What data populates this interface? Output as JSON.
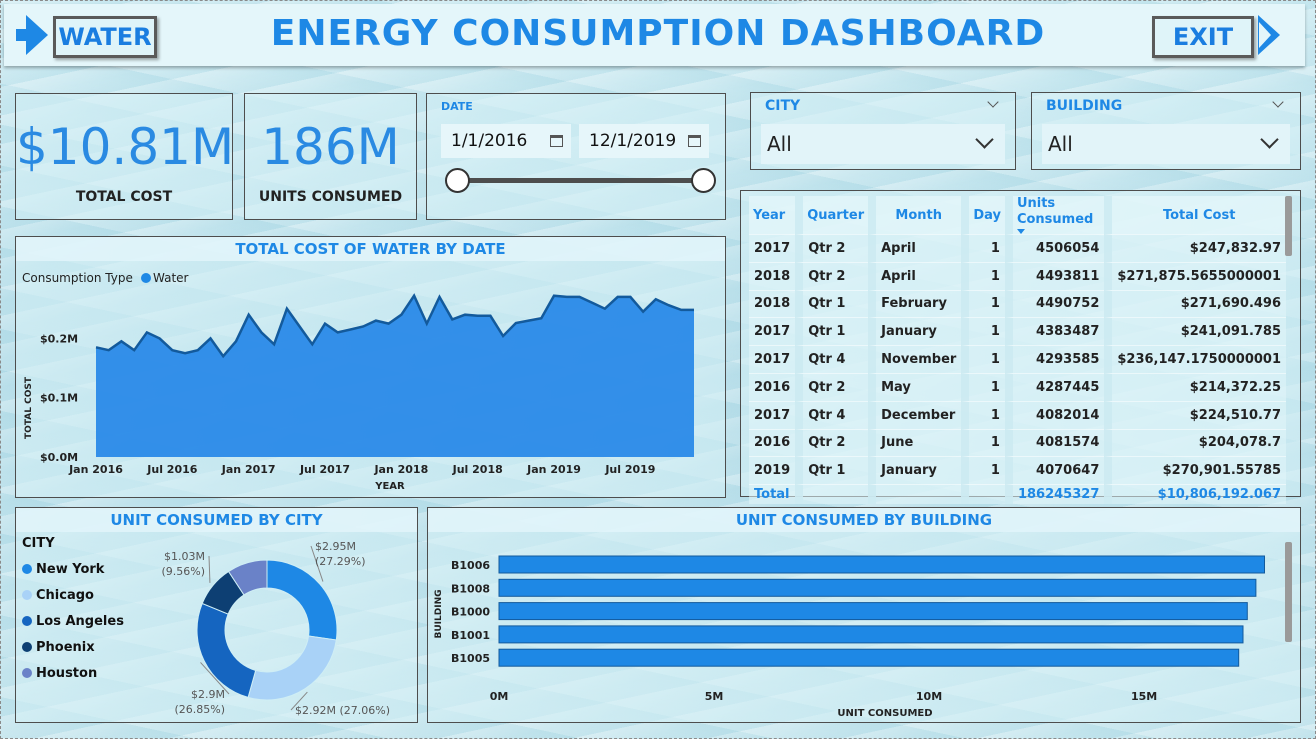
{
  "header": {
    "title": "ENERGY CONSUMPTION DASHBOARD",
    "water_button": "WATER",
    "exit_button": "EXIT"
  },
  "kpis": {
    "total_cost_value": "$10.81M",
    "total_cost_label": "TOTAL COST",
    "units_value": "186M",
    "units_label": "UNITS CONSUMED"
  },
  "date_slicer": {
    "label": "DATE",
    "start": "1/1/2016",
    "end": "12/1/2019",
    "range_fraction": [
      0,
      1
    ]
  },
  "city_slicer": {
    "label": "CITY",
    "value": "All"
  },
  "building_slicer": {
    "label": "BUILDING",
    "value": "All"
  },
  "table": {
    "columns": [
      "Year",
      "Quarter",
      "Month",
      "Day",
      "Units Consumed",
      "Total Cost"
    ],
    "sorted_column": "Units Consumed",
    "rows": [
      [
        "2017",
        "Qtr 2",
        "April",
        "1",
        "4506054",
        "$247,832.97"
      ],
      [
        "2018",
        "Qtr 2",
        "April",
        "1",
        "4493811",
        "$271,875.5655000001"
      ],
      [
        "2018",
        "Qtr 1",
        "February",
        "1",
        "4490752",
        "$271,690.496"
      ],
      [
        "2017",
        "Qtr 1",
        "January",
        "1",
        "4383487",
        "$241,091.785"
      ],
      [
        "2017",
        "Qtr 4",
        "November",
        "1",
        "4293585",
        "$236,147.1750000001"
      ],
      [
        "2016",
        "Qtr 2",
        "May",
        "1",
        "4287445",
        "$214,372.25"
      ],
      [
        "2017",
        "Qtr 4",
        "December",
        "1",
        "4082014",
        "$224,510.77"
      ],
      [
        "2016",
        "Qtr 2",
        "June",
        "1",
        "4081574",
        "$204,078.7"
      ],
      [
        "2019",
        "Qtr 1",
        "January",
        "1",
        "4070647",
        "$270,901.55785"
      ]
    ],
    "total": [
      "Total",
      "",
      "",
      "",
      "186245327",
      "$10,806,192.067"
    ]
  },
  "chart_data": [
    {
      "type": "area",
      "title": "TOTAL COST OF WATER BY DATE",
      "legend_title": "Consumption Type",
      "xlabel": "YEAR",
      "ylabel": "TOTAL COST",
      "x_ticks": [
        "Jan 2016",
        "Jul 2016",
        "Jan 2017",
        "Jul 2017",
        "Jan 2018",
        "Jul 2018",
        "Jan 2019",
        "Jul 2019"
      ],
      "y_ticks": [
        "$0.0M",
        "$0.1M",
        "$0.2M"
      ],
      "ylim": [
        0,
        0.29
      ],
      "color": "#1e88e5",
      "series": [
        {
          "name": "Water",
          "values": [
            0.185,
            0.18,
            0.195,
            0.18,
            0.21,
            0.2,
            0.18,
            0.175,
            0.18,
            0.2,
            0.17,
            0.195,
            0.24,
            0.21,
            0.19,
            0.25,
            0.22,
            0.19,
            0.225,
            0.21,
            0.215,
            0.22,
            0.23,
            0.225,
            0.24,
            0.272,
            0.225,
            0.27,
            0.232,
            0.24,
            0.238,
            0.238,
            0.204,
            0.226,
            0.23,
            0.234,
            0.272,
            0.27,
            0.27,
            0.26,
            0.25,
            0.27,
            0.27,
            0.245,
            0.266,
            0.256,
            0.248,
            0.248
          ]
        }
      ]
    },
    {
      "type": "pie",
      "title": "UNIT CONSUMED BY CITY",
      "legend_title": "CITY",
      "categories": [
        "New York",
        "Chicago",
        "Los Angeles",
        "Phoenix",
        "Houston"
      ],
      "values": [
        27.29,
        27.06,
        26.85,
        9.56,
        9.24
      ],
      "colors": [
        "#1e88e5",
        "#a9d2f7",
        "#1565c0",
        "#0d3f73",
        "#6a82c8"
      ],
      "labels": [
        "$2.95M\n(27.29%)",
        "$2.92M (27.06%)",
        "$2.9M\n(26.85%)",
        "$1.03M\n(9.56%)",
        ""
      ]
    },
    {
      "type": "bar",
      "orientation": "horizontal",
      "title": "UNIT CONSUMED BY BUILDING",
      "xlabel": "UNIT CONSUMED",
      "ylabel": "BUILDING",
      "categories": [
        "B1006",
        "B1008",
        "B1000",
        "B1001",
        "B1005"
      ],
      "values": [
        17.8,
        17.6,
        17.4,
        17.3,
        17.2
      ],
      "x_ticks": [
        "0M",
        "5M",
        "10M",
        "15M"
      ],
      "xlim": [
        0,
        18.3
      ],
      "color": "#1e88e5"
    }
  ]
}
